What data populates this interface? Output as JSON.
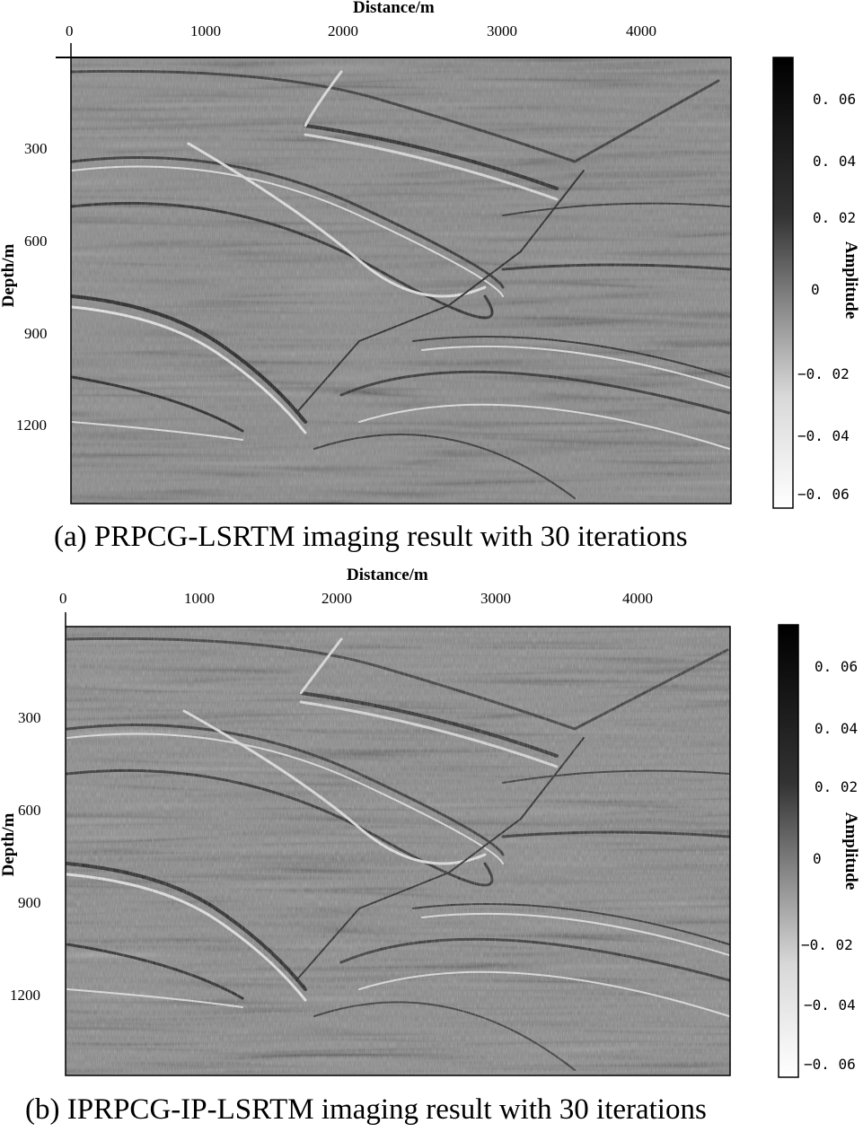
{
  "panels": [
    {
      "xlabel": "Distance/m",
      "ylabel": "Depth/m",
      "xticks": [
        "0",
        "1000",
        "2000",
        "3000",
        "4000"
      ],
      "yticks": [
        "300",
        "600",
        "900",
        "1200"
      ],
      "colorbar": {
        "label": "Amplitude",
        "ticks": [
          "0. 06",
          "0. 04",
          "0. 02",
          "0",
          "−0. 02",
          "−0. 04",
          "−0. 06"
        ]
      },
      "caption": "(a) PRPCG-LSRTM imaging result with 30 iterations"
    },
    {
      "xlabel": "Distance/m",
      "ylabel": "Depth/m",
      "xticks": [
        "0",
        "1000",
        "2000",
        "3000",
        "4000"
      ],
      "yticks": [
        "300",
        "600",
        "900",
        "1200"
      ],
      "colorbar": {
        "label": "Amplitude",
        "ticks": [
          "0. 06",
          "0. 04",
          "0. 02",
          "0",
          "−0. 02",
          "−0. 04",
          "−0. 06"
        ]
      },
      "caption": "(b) IPRPCG-IP-LSRTM imaging result with 30 iterations"
    }
  ],
  "colors": {
    "background": "#ffffff",
    "seismic_base": "#8a8a8a",
    "colormap_high": "#000000",
    "colormap_low": "#ffffff"
  }
}
